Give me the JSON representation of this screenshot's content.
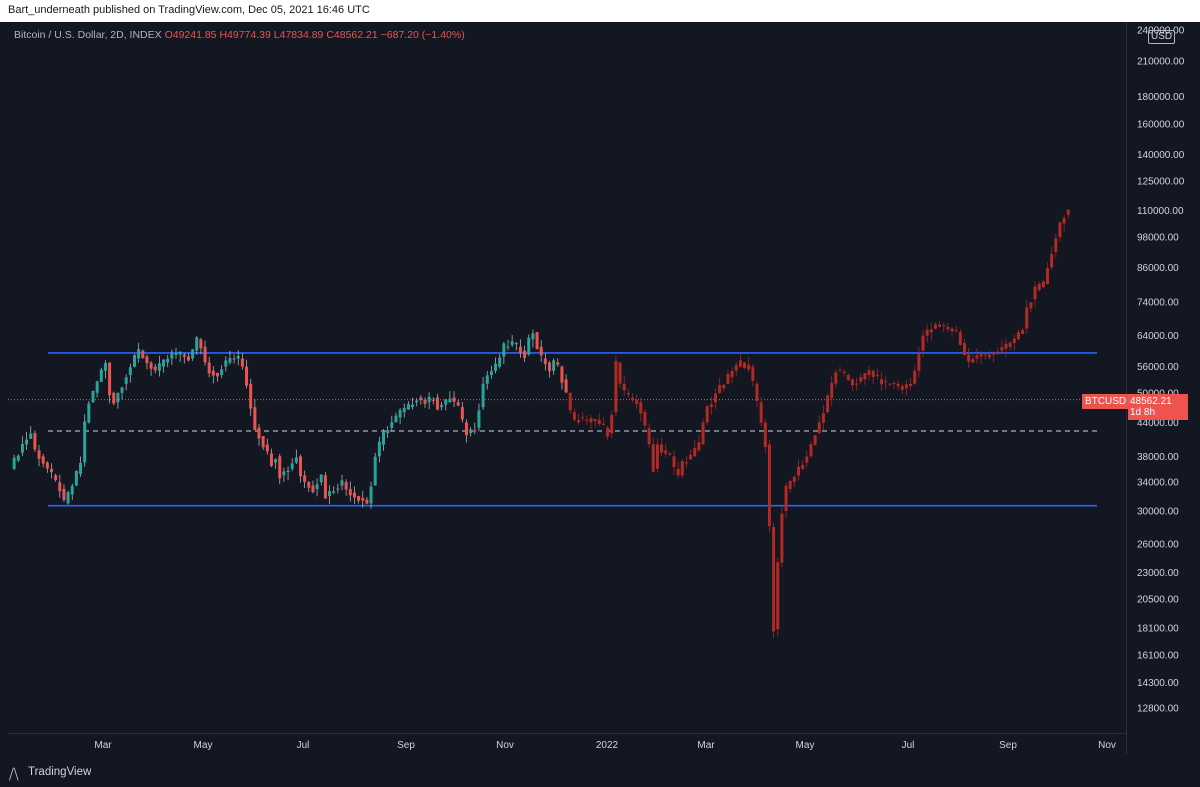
{
  "header": {
    "publisher": "Bart_underneath published on TradingView.com, Dec 05, 2021 16:46 UTC"
  },
  "legend": {
    "symbol": "Bitcoin / U.S. Dollar, 2D, INDEX",
    "open": "O49241.85",
    "high": "H49774.39",
    "low": "L47834.89",
    "close": "C48562.21",
    "change": "−687.20 (−1.40%)"
  },
  "currency_label": "USD",
  "price_label": {
    "symbol": "BTCUSD",
    "price": "48562.21",
    "countdown": "1d 8h"
  },
  "footer": {
    "brand": "TradingView",
    "logo_icon": "tradingview-logo-icon"
  },
  "colors": {
    "up": "#26a69a",
    "down": "#ef5350",
    "projection": "#b22a23",
    "level": "#2962ff",
    "background": "#131722"
  },
  "chart_data": {
    "type": "candlestick",
    "x_ticks": [
      "Mar",
      "May",
      "Jul",
      "Sep",
      "Nov",
      "2022",
      "Mar",
      "May",
      "Jul",
      "Sep",
      "Nov"
    ],
    "y_ticks": [
      "240000.00",
      "210000.00",
      "180000.00",
      "160000.00",
      "140000.00",
      "125000.00",
      "110000.00",
      "98000.00",
      "86000.00",
      "74000.00",
      "64000.00",
      "56000.00",
      "50000.00",
      "44000.00",
      "38000.00",
      "34000.00",
      "30000.00",
      "26000.00",
      "23000.00",
      "20500.00",
      "18100.00",
      "16100.00",
      "14300.00",
      "12800.00"
    ],
    "y_scale": "log",
    "ylim": [
      11500,
      245000
    ],
    "current_price": 48562.21,
    "horizontal_levels": [
      {
        "price": 59400,
        "style": "solid",
        "color": "#2962ff"
      },
      {
        "price": 30700,
        "style": "solid",
        "color": "#2962ff"
      },
      {
        "price": 42400,
        "style": "dashed",
        "color": "#d1d4dc"
      },
      {
        "price": 48562.21,
        "style": "dotted",
        "color": "#ef5350"
      }
    ],
    "series": [
      {
        "name": "",
        "kind": "actual",
        "path": [
          [
            0,
            36000
          ],
          [
            3,
            40000
          ],
          [
            5,
            42000
          ],
          [
            6,
            39000
          ],
          [
            8,
            37000
          ],
          [
            10,
            35000
          ],
          [
            12,
            33000
          ],
          [
            13,
            31000
          ],
          [
            15,
            33500
          ],
          [
            17,
            37000
          ],
          [
            18,
            44000
          ],
          [
            19,
            48000
          ],
          [
            20,
            50000
          ],
          [
            22,
            55000
          ],
          [
            23,
            57000
          ],
          [
            24,
            50000
          ],
          [
            25,
            48000
          ],
          [
            26,
            50000
          ],
          [
            28,
            54000
          ],
          [
            30,
            58000
          ],
          [
            31,
            60000
          ],
          [
            33,
            57000
          ],
          [
            35,
            55000
          ],
          [
            37,
            57000
          ],
          [
            39,
            59000
          ],
          [
            41,
            59000
          ],
          [
            43,
            58000
          ],
          [
            44,
            60000
          ],
          [
            45,
            63000
          ],
          [
            46,
            61000
          ],
          [
            47,
            57000
          ],
          [
            48,
            55000
          ],
          [
            50,
            54000
          ],
          [
            51,
            56000
          ],
          [
            53,
            58000
          ],
          [
            55,
            58000
          ],
          [
            56,
            56000
          ],
          [
            57,
            52000
          ],
          [
            58,
            47000
          ],
          [
            59,
            43000
          ],
          [
            61,
            40000
          ],
          [
            63,
            37000
          ],
          [
            64,
            38000
          ],
          [
            65,
            35000
          ],
          [
            67,
            36000
          ],
          [
            69,
            38000
          ],
          [
            70,
            35000
          ],
          [
            71,
            34000
          ],
          [
            73,
            33000
          ],
          [
            75,
            35000
          ],
          [
            76,
            32000
          ],
          [
            78,
            33000
          ],
          [
            80,
            34000
          ],
          [
            81,
            33000
          ],
          [
            83,
            32000
          ],
          [
            85,
            31500
          ],
          [
            86,
            31000
          ],
          [
            87,
            33500
          ],
          [
            88,
            38000
          ],
          [
            90,
            42000
          ],
          [
            92,
            44000
          ],
          [
            94,
            46000
          ],
          [
            96,
            47000
          ],
          [
            98,
            49000
          ],
          [
            100,
            48000
          ],
          [
            102,
            49000
          ],
          [
            103,
            47000
          ],
          [
            105,
            48000
          ],
          [
            106,
            49000
          ],
          [
            108,
            47000
          ],
          [
            109,
            44000
          ],
          [
            110,
            42000
          ],
          [
            112,
            43000
          ],
          [
            113,
            47000
          ],
          [
            114,
            52000
          ],
          [
            115,
            54000
          ],
          [
            117,
            56000
          ],
          [
            119,
            61000
          ],
          [
            121,
            62000
          ],
          [
            123,
            60000
          ],
          [
            124,
            59000
          ],
          [
            125,
            63000
          ],
          [
            126,
            65000
          ],
          [
            127,
            61000
          ],
          [
            128,
            58000
          ],
          [
            129,
            57000
          ],
          [
            130,
            55000
          ],
          [
            131,
            57000
          ],
          [
            132,
            56000
          ],
          [
            133,
            53000
          ],
          [
            134,
            50000
          ]
        ]
      },
      {
        "name": "",
        "kind": "projection",
        "path": [
          [
            134,
            50000
          ],
          [
            135,
            46000
          ],
          [
            136,
            44000
          ],
          [
            137,
            45000
          ],
          [
            139,
            44000
          ],
          [
            141,
            44500
          ],
          [
            143,
            43000
          ],
          [
            144,
            42000
          ],
          [
            145,
            46000
          ],
          [
            146,
            57000
          ],
          [
            147,
            52000
          ],
          [
            148,
            50000
          ],
          [
            149,
            49000
          ],
          [
            151,
            48000
          ],
          [
            152,
            46000
          ],
          [
            154,
            40000
          ],
          [
            155,
            36000
          ],
          [
            156,
            40000
          ],
          [
            157,
            39000
          ],
          [
            159,
            38000
          ],
          [
            160,
            36000
          ],
          [
            161,
            35000
          ],
          [
            162,
            37000
          ],
          [
            164,
            38000
          ],
          [
            166,
            40000
          ],
          [
            167,
            44000
          ],
          [
            168,
            47000
          ],
          [
            169,
            48000
          ],
          [
            170,
            50000
          ],
          [
            172,
            52000
          ],
          [
            174,
            55000
          ],
          [
            176,
            57000
          ],
          [
            178,
            56000
          ],
          [
            179,
            52000
          ],
          [
            180,
            48000
          ],
          [
            181,
            44000
          ],
          [
            182,
            40000
          ],
          [
            183,
            28000
          ],
          [
            184,
            18000
          ],
          [
            185,
            24000
          ],
          [
            186,
            30000
          ],
          [
            187,
            33000
          ],
          [
            188,
            34000
          ],
          [
            190,
            36000
          ],
          [
            192,
            38000
          ],
          [
            194,
            42000
          ],
          [
            196,
            46000
          ],
          [
            198,
            52000
          ],
          [
            199,
            55000
          ],
          [
            201,
            54000
          ],
          [
            203,
            52000
          ],
          [
            205,
            53000
          ],
          [
            207,
            55000
          ],
          [
            209,
            53000
          ],
          [
            211,
            52000
          ],
          [
            213,
            52000
          ],
          [
            215,
            51000
          ],
          [
            217,
            52000
          ],
          [
            218,
            55000
          ],
          [
            219,
            60000
          ],
          [
            220,
            64000
          ],
          [
            222,
            66000
          ],
          [
            224,
            67000
          ],
          [
            226,
            66000
          ],
          [
            228,
            65000
          ],
          [
            229,
            62000
          ],
          [
            230,
            59000
          ],
          [
            231,
            57000
          ],
          [
            232,
            58000
          ],
          [
            234,
            59000
          ],
          [
            236,
            59000
          ],
          [
            238,
            60000
          ],
          [
            240,
            61000
          ],
          [
            242,
            63000
          ],
          [
            244,
            66000
          ],
          [
            245,
            72000
          ],
          [
            247,
            78000
          ],
          [
            249,
            80000
          ],
          [
            250,
            86000
          ],
          [
            251,
            92000
          ],
          [
            252,
            98000
          ],
          [
            253,
            104000
          ],
          [
            254,
            108000
          ],
          [
            255,
            110000
          ]
        ]
      }
    ]
  }
}
